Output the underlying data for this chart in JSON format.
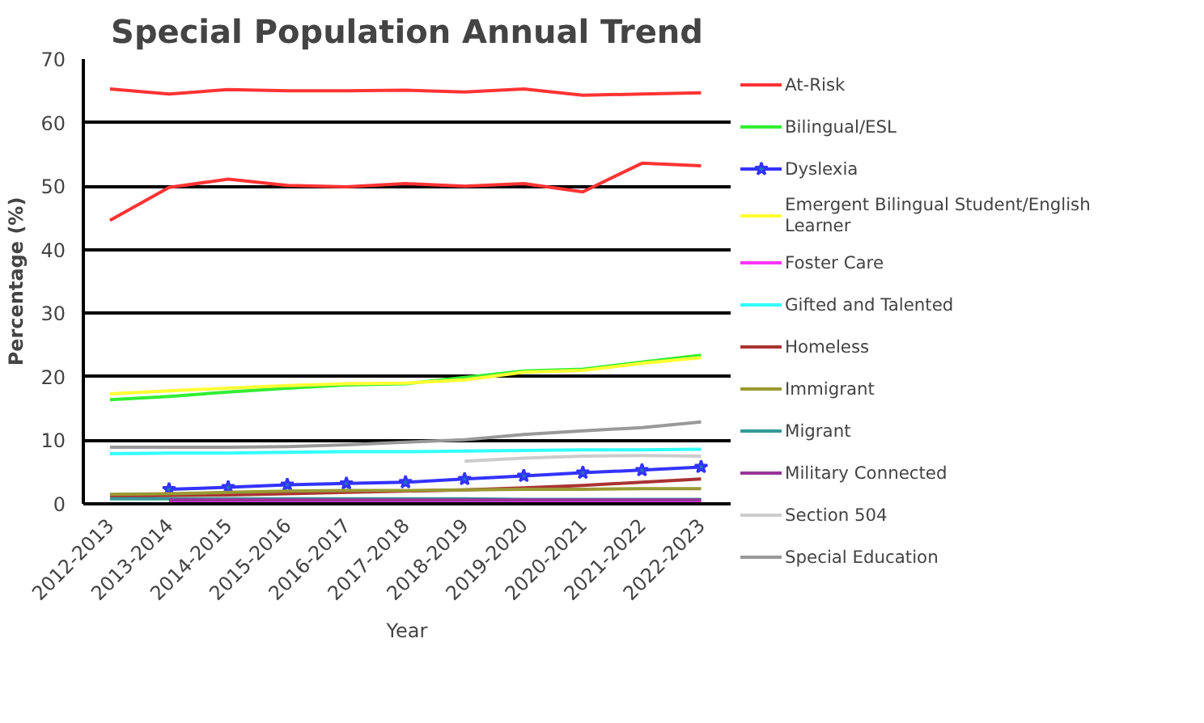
{
  "chart_data": {
    "type": "line",
    "title": "Special Population Annual Trend",
    "xlabel": "Year",
    "ylabel": "Percentage (%)",
    "categories": [
      "2012-2013",
      "2013-2014",
      "2014-2015",
      "2015-2016",
      "2016-2017",
      "2017-2018",
      "2018-2019",
      "2019-2020",
      "2020-2021",
      "2021-2022",
      "2022-2023"
    ],
    "ylim": [
      0,
      70
    ],
    "yticks": [
      0,
      10,
      20,
      30,
      40,
      50,
      60,
      70
    ],
    "grid": "y",
    "legend": "right",
    "marker": "none",
    "series": [
      {
        "color": "#ff3333",
        "values": [
          65.3,
          64.5,
          65.2,
          65.0,
          65.0,
          65.1,
          64.8,
          65.3,
          64.3,
          64.5,
          64.7
        ]
      },
      {
        "name": "At-Risk",
        "color": "#ff3333",
        "values": [
          44.6,
          49.8,
          51.1,
          50.1,
          49.9,
          50.4,
          50.0,
          50.4,
          49.1,
          53.6,
          53.2
        ]
      },
      {
        "name": "Bilingual/ESL",
        "color": "#33ee33",
        "values": [
          16.4,
          16.9,
          17.6,
          18.2,
          18.7,
          18.9,
          19.9,
          20.9,
          21.2,
          22.3,
          23.4
        ]
      },
      {
        "name": "Dyslexia",
        "color": "#3333ff",
        "marker": "star",
        "values": [
          null,
          2.3,
          2.6,
          3.0,
          3.2,
          3.4,
          3.9,
          4.4,
          4.9,
          5.3,
          5.8
        ]
      },
      {
        "name": "Emergent Bilingual Student/English Learner",
        "color": "#ffff33",
        "values": [
          17.3,
          17.8,
          18.2,
          18.6,
          18.9,
          19.0,
          19.5,
          20.7,
          21.0,
          22.1,
          23.0
        ]
      },
      {
        "name": "Foster Care",
        "color": "#ff33ff",
        "values": [
          null,
          0.3,
          0.3,
          0.3,
          0.3,
          0.3,
          0.3,
          0.3,
          0.3,
          0.3,
          0.3
        ]
      },
      {
        "name": "Gifted and Talented",
        "color": "#33ffff",
        "values": [
          7.9,
          8.0,
          8.0,
          8.1,
          8.2,
          8.2,
          8.3,
          8.4,
          8.5,
          8.5,
          8.6
        ]
      },
      {
        "name": "Homeless",
        "color": "#aa3333",
        "values": [
          1.2,
          1.3,
          1.4,
          1.6,
          1.8,
          2.0,
          2.2,
          2.5,
          2.9,
          3.4,
          3.9
        ]
      },
      {
        "name": "Immigrant",
        "color": "#999933",
        "values": [
          1.5,
          1.6,
          1.8,
          2.0,
          2.1,
          2.1,
          2.2,
          2.3,
          2.3,
          2.4,
          2.4
        ]
      },
      {
        "name": "Migrant",
        "color": "#339999",
        "values": [
          0.8,
          0.8,
          0.8,
          0.8,
          0.8,
          0.8,
          0.8,
          0.7,
          0.7,
          0.7,
          0.7
        ]
      },
      {
        "name": "Military Connected",
        "color": "#993399",
        "values": [
          null,
          0.6,
          0.6,
          0.6,
          0.6,
          0.6,
          0.6,
          0.6,
          0.6,
          0.6,
          0.6
        ]
      },
      {
        "name": "Section 504",
        "color": "#cccccc",
        "values": [
          null,
          null,
          null,
          null,
          null,
          null,
          6.7,
          7.2,
          7.5,
          7.6,
          7.5
        ]
      },
      {
        "name": "Special Education",
        "color": "#999999",
        "values": [
          8.9,
          8.9,
          8.9,
          9.0,
          9.3,
          9.7,
          10.1,
          10.9,
          11.5,
          12.0,
          12.9
        ]
      }
    ]
  }
}
